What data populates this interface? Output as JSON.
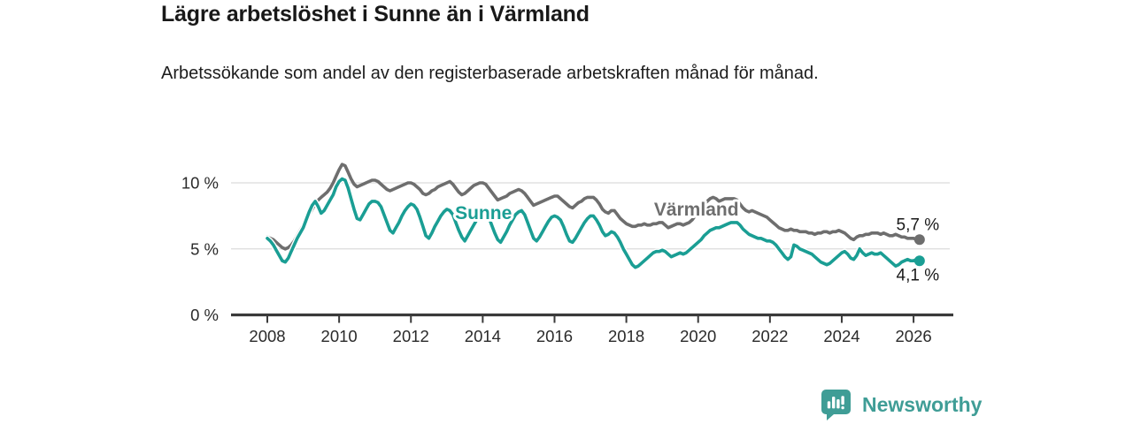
{
  "header": {
    "title": "Lägre arbetslöshet i Sunne än i Värmland",
    "subtitle": "Arbetssökande som andel av den registerbaserade arbetskraften månad för månad."
  },
  "chart_data": {
    "type": "line",
    "title": "Lägre arbetslöshet i Sunne än i Värmland",
    "xlabel": "",
    "ylabel": "Arbetssökande som andel av den registerbaserade arbetskraften",
    "x_start_year": 2008,
    "x_step_months": 1,
    "x_ticks": [
      2008,
      2010,
      2012,
      2014,
      2016,
      2018,
      2020,
      2022,
      2024,
      2026
    ],
    "y_ticks": [
      0,
      5,
      10
    ],
    "y_unit": " %",
    "ylim": [
      0,
      12.5
    ],
    "grid": "horizontal",
    "legend_position": "inline-labels",
    "axis_color": "#3a3a3a",
    "grid_color": "#dcdcdc",
    "series": [
      {
        "name": "Värmland",
        "color": "#6E6E6E",
        "end_label": "5,7 %",
        "end_value": 5.7,
        "label_anchor": {
          "year": 2019.95,
          "value": 8.0
        },
        "values": [
          5.9,
          5.8,
          5.7,
          5.5,
          5.3,
          5.1,
          5.0,
          5.1,
          5.3,
          5.6,
          6.0,
          6.4,
          6.8,
          7.2,
          7.6,
          8.0,
          8.4,
          8.7,
          8.9,
          9.1,
          9.3,
          9.6,
          10.0,
          10.5,
          11.0,
          11.4,
          11.3,
          10.8,
          10.3,
          9.9,
          9.7,
          9.8,
          9.9,
          10.0,
          10.1,
          10.2,
          10.2,
          10.1,
          9.9,
          9.7,
          9.5,
          9.4,
          9.5,
          9.6,
          9.7,
          9.8,
          9.9,
          10.0,
          10.0,
          9.9,
          9.7,
          9.5,
          9.2,
          9.1,
          9.2,
          9.4,
          9.5,
          9.7,
          9.8,
          9.9,
          10.0,
          10.1,
          9.9,
          9.6,
          9.3,
          9.1,
          9.2,
          9.4,
          9.6,
          9.8,
          9.9,
          10.0,
          10.0,
          9.9,
          9.6,
          9.3,
          9.0,
          8.7,
          8.8,
          8.9,
          9.0,
          9.2,
          9.3,
          9.4,
          9.5,
          9.4,
          9.2,
          8.9,
          8.6,
          8.3,
          8.4,
          8.5,
          8.6,
          8.7,
          8.8,
          8.9,
          9.0,
          9.0,
          8.8,
          8.6,
          8.4,
          8.2,
          8.1,
          8.3,
          8.5,
          8.6,
          8.8,
          8.9,
          8.9,
          8.9,
          8.7,
          8.4,
          8.0,
          7.8,
          7.7,
          7.9,
          7.9,
          7.6,
          7.3,
          7.1,
          6.9,
          6.8,
          6.7,
          6.7,
          6.8,
          6.8,
          6.9,
          6.8,
          6.8,
          6.9,
          6.9,
          7.0,
          7.0,
          6.8,
          6.6,
          6.7,
          6.8,
          6.9,
          6.9,
          6.8,
          6.9,
          7.0,
          7.2,
          7.5,
          7.8,
          8.1,
          8.4,
          8.6,
          8.8,
          8.9,
          8.8,
          8.6,
          8.7,
          8.8,
          8.8,
          8.8,
          8.8,
          8.7,
          8.4,
          8.1,
          7.9,
          7.8,
          7.9,
          7.8,
          7.7,
          7.6,
          7.5,
          7.4,
          7.2,
          7.0,
          6.8,
          6.6,
          6.5,
          6.4,
          6.4,
          6.5,
          6.4,
          6.4,
          6.3,
          6.3,
          6.3,
          6.2,
          6.2,
          6.1,
          6.2,
          6.2,
          6.3,
          6.3,
          6.2,
          6.3,
          6.3,
          6.4,
          6.3,
          6.2,
          6.0,
          5.8,
          5.7,
          5.9,
          6.0,
          6.0,
          6.1,
          6.1,
          6.2,
          6.2,
          6.2,
          6.1,
          6.2,
          6.1,
          6.0,
          6.0,
          6.1,
          6.0,
          5.9,
          5.9,
          5.8,
          5.8,
          5.8,
          5.7,
          5.7
        ]
      },
      {
        "name": "Sunne",
        "color": "#1A9E94",
        "end_label": "4,1 %",
        "end_value": 4.1,
        "label_anchor": {
          "year": 2014.02,
          "value": 7.73
        },
        "values": [
          5.8,
          5.6,
          5.3,
          4.9,
          4.5,
          4.1,
          4.0,
          4.3,
          4.8,
          5.3,
          5.8,
          6.2,
          6.6,
          7.2,
          7.8,
          8.3,
          8.6,
          8.2,
          7.7,
          7.9,
          8.3,
          8.7,
          9.1,
          9.7,
          10.1,
          10.3,
          10.2,
          9.6,
          8.8,
          8.0,
          7.3,
          7.2,
          7.6,
          8.0,
          8.4,
          8.6,
          8.6,
          8.5,
          8.2,
          7.6,
          7.0,
          6.4,
          6.2,
          6.6,
          7.0,
          7.5,
          7.9,
          8.2,
          8.4,
          8.3,
          8.0,
          7.4,
          6.7,
          6.0,
          5.8,
          6.2,
          6.7,
          7.1,
          7.5,
          7.8,
          8.0,
          7.9,
          7.6,
          7.0,
          6.4,
          5.9,
          5.6,
          6.0,
          6.4,
          6.8,
          7.2,
          7.6,
          7.8,
          7.7,
          7.4,
          6.8,
          6.2,
          5.7,
          5.5,
          5.9,
          6.3,
          6.8,
          7.2,
          7.6,
          7.8,
          7.9,
          7.6,
          7.0,
          6.4,
          5.8,
          5.6,
          5.9,
          6.3,
          6.7,
          7.1,
          7.4,
          7.5,
          7.4,
          7.2,
          6.7,
          6.1,
          5.6,
          5.5,
          5.8,
          6.2,
          6.6,
          7.0,
          7.3,
          7.5,
          7.5,
          7.2,
          6.8,
          6.3,
          6.0,
          6.1,
          6.3,
          6.2,
          5.9,
          5.5,
          5.0,
          4.6,
          4.2,
          3.8,
          3.6,
          3.7,
          3.9,
          4.1,
          4.3,
          4.5,
          4.7,
          4.8,
          4.8,
          4.9,
          4.8,
          4.6,
          4.4,
          4.5,
          4.6,
          4.7,
          4.6,
          4.7,
          4.9,
          5.1,
          5.3,
          5.5,
          5.7,
          6.0,
          6.2,
          6.4,
          6.5,
          6.6,
          6.6,
          6.7,
          6.8,
          6.9,
          7.0,
          7.0,
          7.0,
          6.8,
          6.5,
          6.3,
          6.1,
          6.0,
          5.9,
          5.8,
          5.8,
          5.7,
          5.6,
          5.6,
          5.5,
          5.3,
          5.0,
          4.7,
          4.4,
          4.2,
          4.4,
          5.3,
          5.2,
          5.0,
          4.9,
          4.8,
          4.7,
          4.6,
          4.4,
          4.2,
          4.0,
          3.9,
          3.8,
          3.9,
          4.1,
          4.3,
          4.5,
          4.7,
          4.8,
          4.6,
          4.3,
          4.2,
          4.5,
          5.0,
          4.7,
          4.5,
          4.6,
          4.7,
          4.6,
          4.6,
          4.7,
          4.5,
          4.3,
          4.1,
          3.9,
          3.7,
          3.8,
          4.0,
          4.1,
          4.2,
          4.1,
          4.1,
          4.2,
          4.1
        ]
      }
    ]
  },
  "footer": {
    "brand": "Newsworthy"
  }
}
